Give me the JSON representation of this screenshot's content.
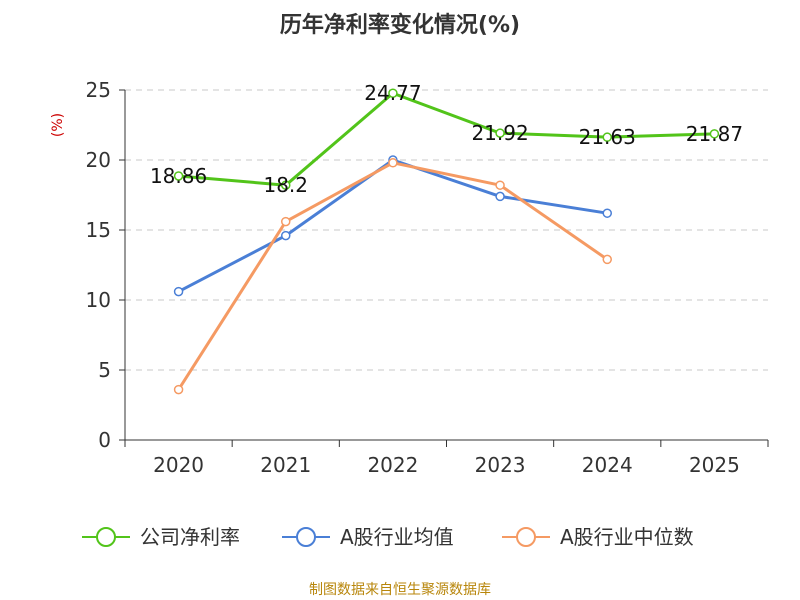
{
  "chart_data": {
    "type": "line",
    "title": "历年净利率变化情况(%)",
    "xlabel": "",
    "ylabel": "(%)",
    "categories": [
      "2020",
      "2021",
      "2022",
      "2023",
      "2024",
      "2025"
    ],
    "ylim": [
      0,
      25
    ],
    "yticks": [
      0,
      5,
      10,
      15,
      20,
      25
    ],
    "grid": true,
    "legend_position": "bottom",
    "series": [
      {
        "name": "公司净利率",
        "color": "#52c41a",
        "values": [
          18.86,
          18.2,
          24.77,
          21.92,
          21.63,
          21.87
        ],
        "labels": [
          "18.86",
          "18.2",
          "24.77",
          "21.92",
          "21.63",
          "21.87"
        ]
      },
      {
        "name": "A股行业均值",
        "color": "#4a7fd6",
        "values": [
          10.6,
          14.6,
          20.0,
          17.4,
          16.2,
          null
        ]
      },
      {
        "name": "A股行业中位数",
        "color": "#f59a63",
        "values": [
          3.6,
          15.6,
          19.8,
          18.2,
          12.9,
          null
        ]
      }
    ],
    "source": "制图数据来自恒生聚源数据库"
  }
}
